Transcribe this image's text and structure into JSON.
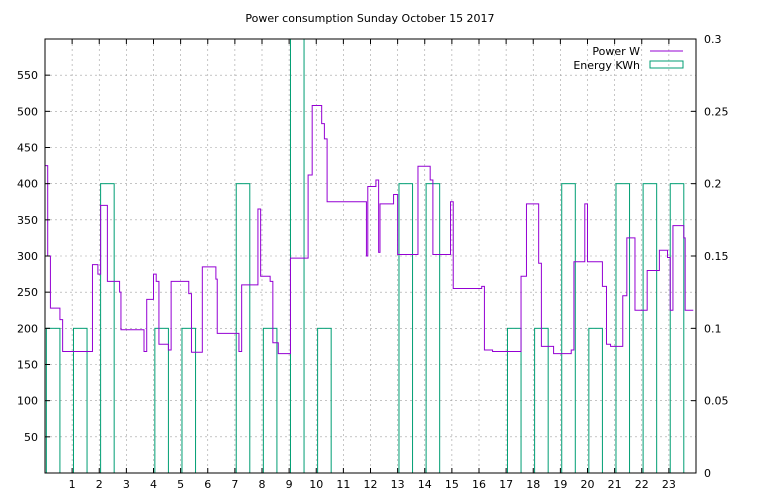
{
  "chart_data": {
    "type": "line",
    "title": "Power consumption Sunday October 15 2017",
    "xlabel": "",
    "ylabel": "",
    "y2label": "",
    "xlim": [
      0,
      24
    ],
    "ylim": [
      0,
      600
    ],
    "y2lim": [
      0,
      0.3
    ],
    "x_ticks": [
      1,
      2,
      3,
      4,
      5,
      6,
      7,
      8,
      9,
      10,
      11,
      12,
      13,
      14,
      15,
      16,
      17,
      18,
      19,
      20,
      21,
      22,
      23
    ],
    "y_ticks": [
      50,
      100,
      150,
      200,
      250,
      300,
      350,
      400,
      450,
      500,
      550
    ],
    "y2_ticks": [
      0,
      0.05,
      0.1,
      0.15,
      0.2,
      0.25,
      0.3
    ],
    "grid": true,
    "legend_position": "top-right",
    "colors": {
      "power": "#9400d3",
      "energy": "#009e73",
      "grid": "#a0a0a0"
    },
    "series": [
      {
        "name": "Power W",
        "axis": "left",
        "style": "step",
        "points": [
          [
            0.0,
            425
          ],
          [
            0.1,
            425
          ],
          [
            0.1,
            300
          ],
          [
            0.2,
            300
          ],
          [
            0.2,
            228
          ],
          [
            0.55,
            228
          ],
          [
            0.55,
            212
          ],
          [
            0.65,
            212
          ],
          [
            0.65,
            168
          ],
          [
            1.75,
            168
          ],
          [
            1.75,
            288
          ],
          [
            1.95,
            288
          ],
          [
            1.95,
            275
          ],
          [
            2.05,
            275
          ],
          [
            2.05,
            370
          ],
          [
            2.3,
            370
          ],
          [
            2.3,
            265
          ],
          [
            2.75,
            265
          ],
          [
            2.75,
            250
          ],
          [
            2.8,
            250
          ],
          [
            2.8,
            198
          ],
          [
            3.65,
            198
          ],
          [
            3.65,
            168
          ],
          [
            3.75,
            168
          ],
          [
            3.75,
            240
          ],
          [
            4.0,
            240
          ],
          [
            4.0,
            275
          ],
          [
            4.1,
            275
          ],
          [
            4.1,
            265
          ],
          [
            4.2,
            265
          ],
          [
            4.2,
            178
          ],
          [
            4.55,
            178
          ],
          [
            4.55,
            170
          ],
          [
            4.65,
            170
          ],
          [
            4.65,
            265
          ],
          [
            5.3,
            265
          ],
          [
            5.3,
            248
          ],
          [
            5.4,
            248
          ],
          [
            5.4,
            167
          ],
          [
            5.8,
            167
          ],
          [
            5.8,
            285
          ],
          [
            6.3,
            285
          ],
          [
            6.3,
            268
          ],
          [
            6.35,
            268
          ],
          [
            6.35,
            193
          ],
          [
            7.15,
            193
          ],
          [
            7.15,
            168
          ],
          [
            7.25,
            168
          ],
          [
            7.25,
            260
          ],
          [
            7.85,
            260
          ],
          [
            7.85,
            365
          ],
          [
            7.95,
            365
          ],
          [
            7.95,
            272
          ],
          [
            8.3,
            272
          ],
          [
            8.3,
            265
          ],
          [
            8.4,
            265
          ],
          [
            8.4,
            180
          ],
          [
            8.6,
            180
          ],
          [
            8.6,
            165
          ],
          [
            9.05,
            165
          ],
          [
            9.05,
            297
          ],
          [
            9.7,
            297
          ],
          [
            9.7,
            412
          ],
          [
            9.85,
            412
          ],
          [
            9.85,
            508
          ],
          [
            10.2,
            508
          ],
          [
            10.2,
            483
          ],
          [
            10.3,
            483
          ],
          [
            10.3,
            462
          ],
          [
            10.4,
            462
          ],
          [
            10.4,
            375
          ],
          [
            11.85,
            375
          ],
          [
            11.85,
            300
          ],
          [
            11.9,
            300
          ],
          [
            11.9,
            396
          ],
          [
            12.2,
            396
          ],
          [
            12.2,
            405
          ],
          [
            12.3,
            405
          ],
          [
            12.3,
            305
          ],
          [
            12.35,
            305
          ],
          [
            12.35,
            372
          ],
          [
            12.85,
            372
          ],
          [
            12.85,
            385
          ],
          [
            13.0,
            385
          ],
          [
            13.0,
            302
          ],
          [
            13.75,
            302
          ],
          [
            13.75,
            424
          ],
          [
            14.2,
            424
          ],
          [
            14.2,
            405
          ],
          [
            14.3,
            405
          ],
          [
            14.3,
            302
          ],
          [
            14.95,
            302
          ],
          [
            14.95,
            375
          ],
          [
            15.05,
            375
          ],
          [
            15.05,
            255
          ],
          [
            16.1,
            255
          ],
          [
            16.1,
            258
          ],
          [
            16.2,
            258
          ],
          [
            16.2,
            170
          ],
          [
            16.5,
            170
          ],
          [
            16.5,
            168
          ],
          [
            17.55,
            168
          ],
          [
            17.55,
            272
          ],
          [
            17.75,
            272
          ],
          [
            17.75,
            372
          ],
          [
            18.2,
            372
          ],
          [
            18.2,
            290
          ],
          [
            18.3,
            290
          ],
          [
            18.3,
            175
          ],
          [
            18.75,
            175
          ],
          [
            18.75,
            165
          ],
          [
            19.4,
            165
          ],
          [
            19.4,
            170
          ],
          [
            19.5,
            170
          ],
          [
            19.5,
            292
          ],
          [
            19.9,
            292
          ],
          [
            19.9,
            372
          ],
          [
            20.0,
            372
          ],
          [
            20.0,
            292
          ],
          [
            20.55,
            292
          ],
          [
            20.55,
            258
          ],
          [
            20.7,
            258
          ],
          [
            20.7,
            178
          ],
          [
            20.85,
            178
          ],
          [
            20.85,
            175
          ],
          [
            21.3,
            175
          ],
          [
            21.3,
            245
          ],
          [
            21.45,
            245
          ],
          [
            21.45,
            325
          ],
          [
            21.75,
            325
          ],
          [
            21.75,
            225
          ],
          [
            22.2,
            225
          ],
          [
            22.2,
            280
          ],
          [
            22.65,
            280
          ],
          [
            22.65,
            308
          ],
          [
            22.95,
            308
          ],
          [
            22.95,
            298
          ],
          [
            23.05,
            298
          ],
          [
            23.05,
            225
          ],
          [
            23.15,
            225
          ],
          [
            23.15,
            342
          ],
          [
            23.55,
            342
          ],
          [
            23.55,
            325
          ],
          [
            23.6,
            325
          ],
          [
            23.6,
            225
          ],
          [
            23.9,
            225
          ]
        ]
      },
      {
        "name": "Energy KWh",
        "axis": "right",
        "style": "boxes",
        "bars": [
          [
            0.0,
            0.1
          ],
          [
            1.0,
            0.1
          ],
          [
            2.0,
            0.2
          ],
          [
            3.0,
            0
          ],
          [
            4.0,
            0.1
          ],
          [
            5.0,
            0.1
          ],
          [
            6.0,
            0
          ],
          [
            7.0,
            0.2
          ],
          [
            8.0,
            0.1
          ],
          [
            9.0,
            0.3
          ],
          [
            10.0,
            0.1
          ],
          [
            11.0,
            0
          ],
          [
            12.0,
            0
          ],
          [
            13.0,
            0.2
          ],
          [
            14.0,
            0.2
          ],
          [
            15.0,
            0
          ],
          [
            16.0,
            0
          ],
          [
            17.0,
            0.1
          ],
          [
            18.0,
            0.1
          ],
          [
            19.0,
            0.2
          ],
          [
            20.0,
            0.1
          ],
          [
            21.0,
            0.2
          ],
          [
            22.0,
            0.2
          ],
          [
            23.0,
            0.2
          ]
        ]
      }
    ]
  }
}
